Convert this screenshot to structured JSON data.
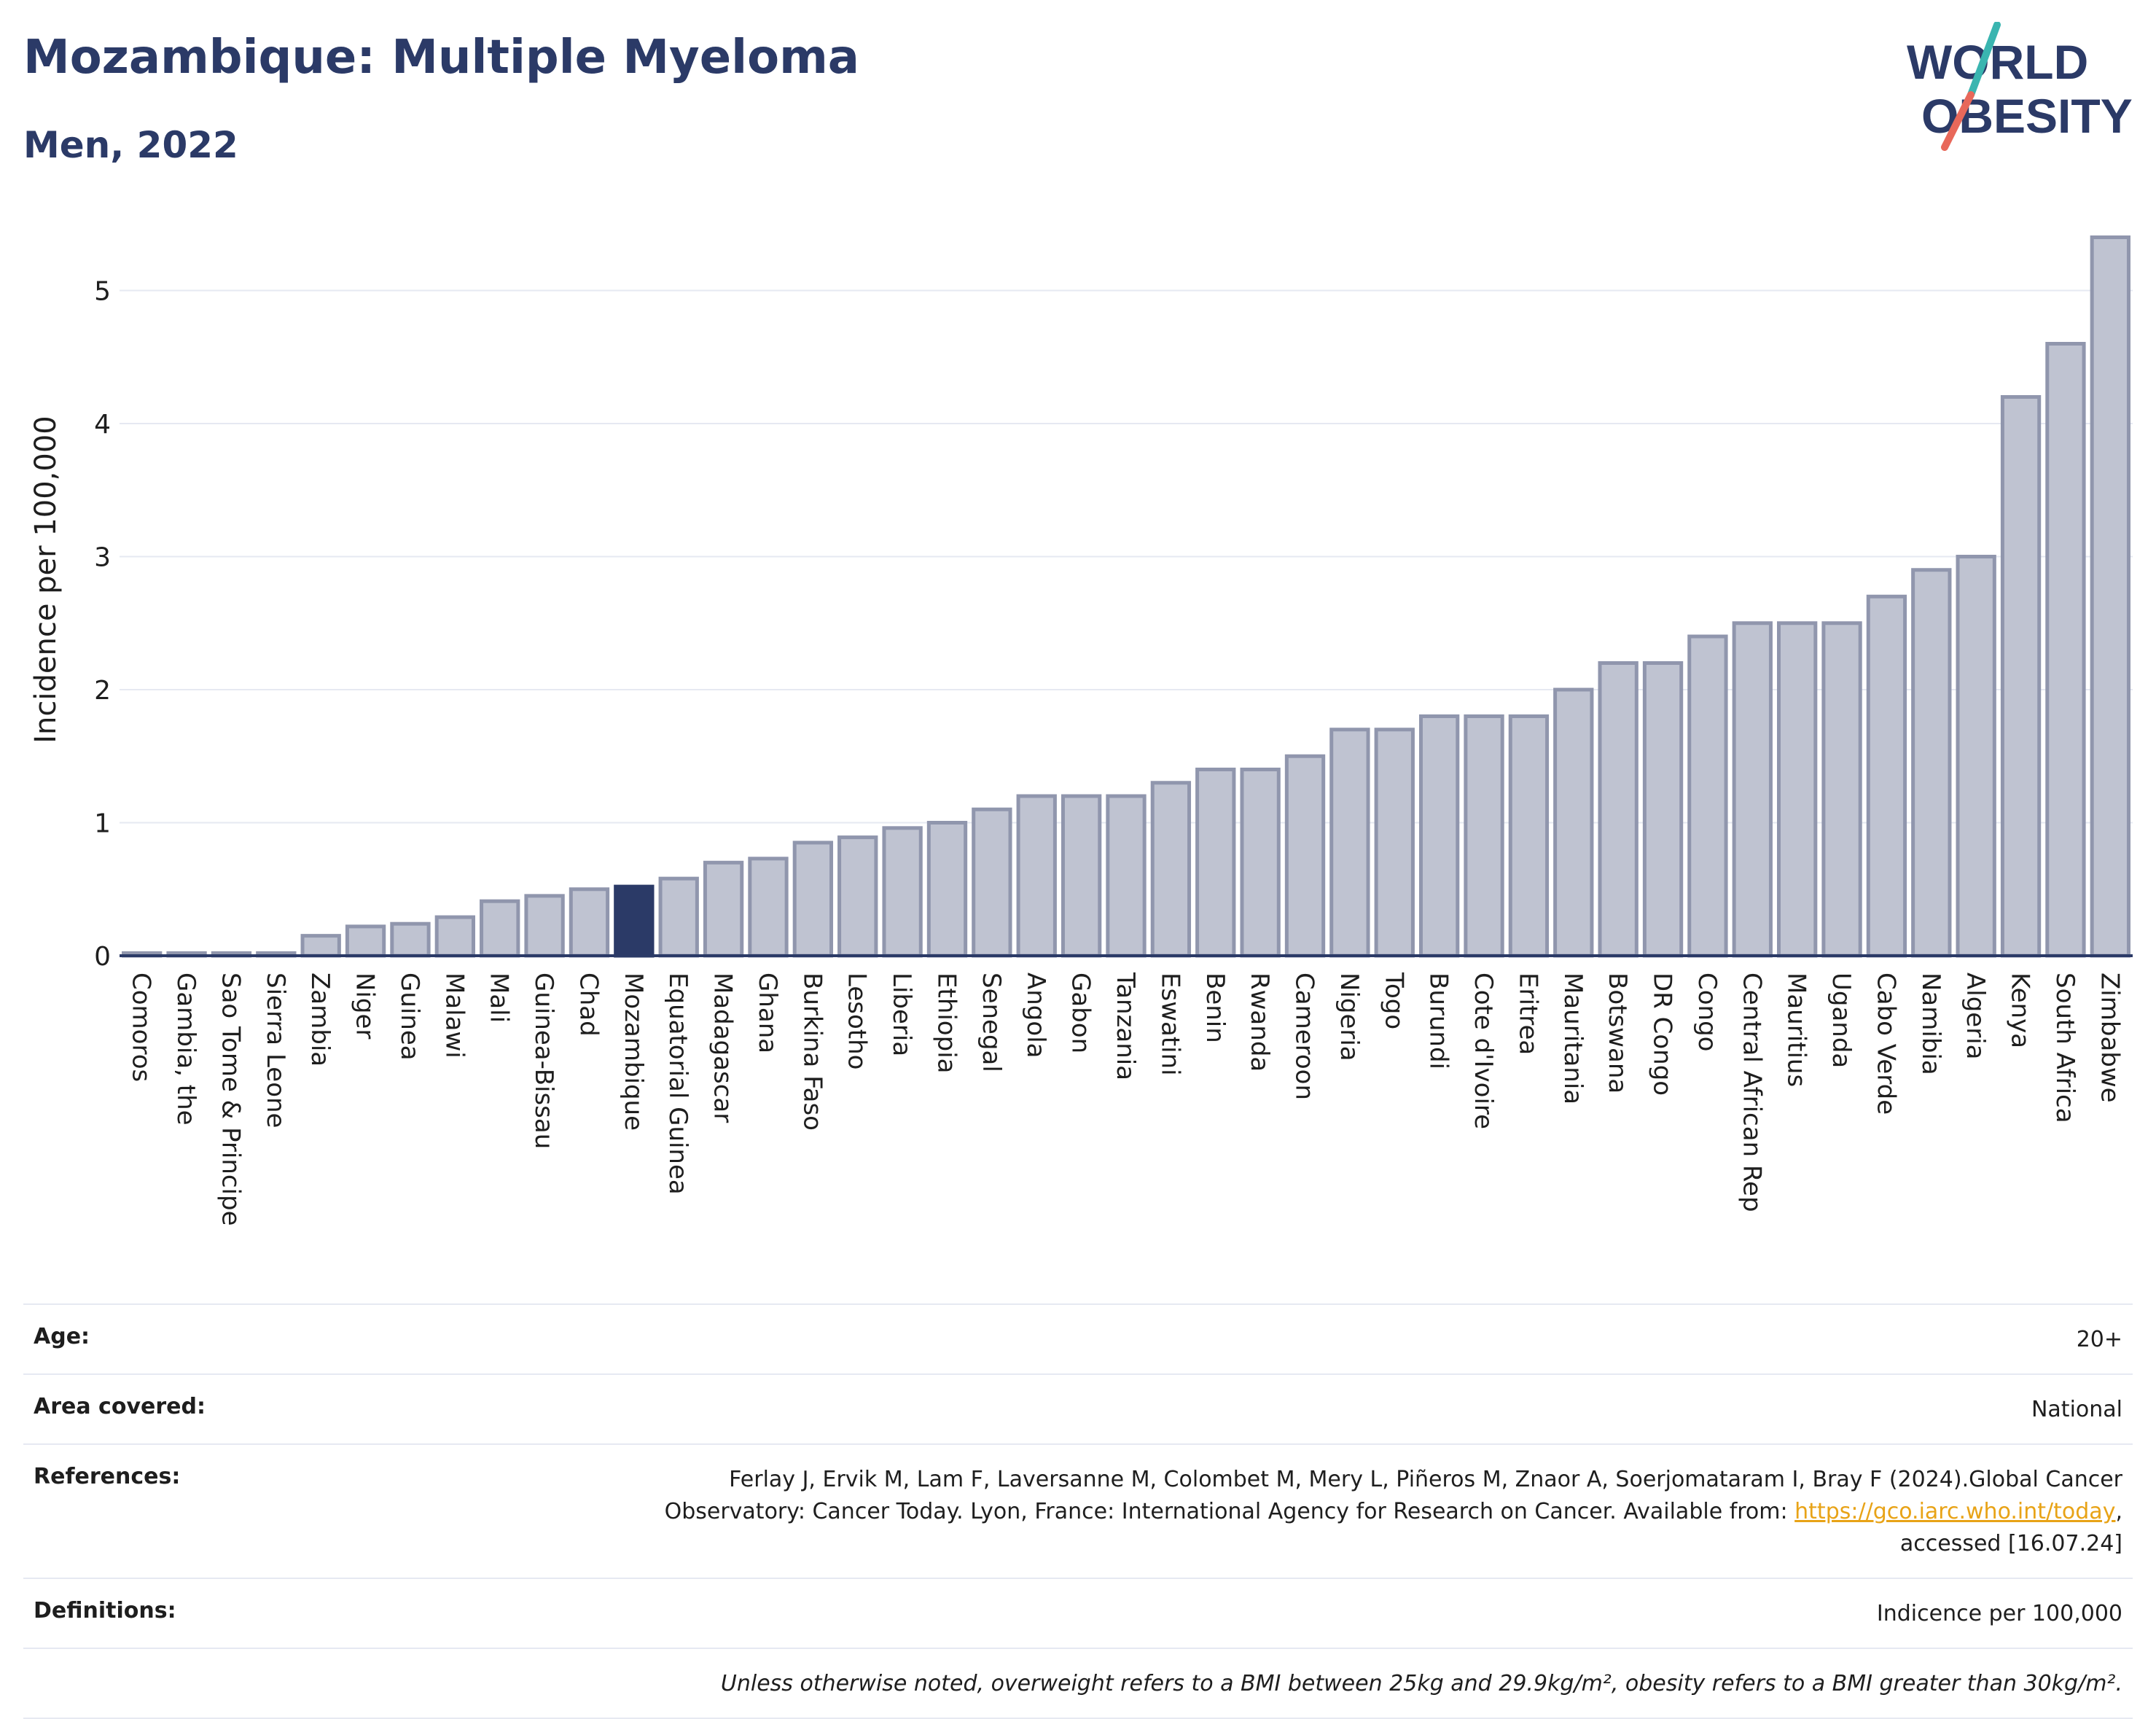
{
  "header": {
    "title": "Mozambique: Multiple Myeloma",
    "subtitle": "Men, 2022"
  },
  "logo": {
    "line1": "WORLD",
    "line2": "OBESITY",
    "text_color": "#2b3a67",
    "slash_colors": [
      "#3ab5b0",
      "#e8685a"
    ]
  },
  "chart_data": {
    "type": "bar",
    "ylabel": "Incidence per 100,000",
    "xlabel": "",
    "ylim": [
      0,
      5.5
    ],
    "yticks": [
      0,
      1,
      2,
      3,
      4,
      5
    ],
    "grid": true,
    "highlight": "Mozambique",
    "colors": {
      "bar": "#bfc3d1",
      "bar_edge": "#9096ad",
      "highlight": "#2b3a67",
      "grid": "#e6e9f2",
      "axis": "#2b3a67"
    },
    "categories": [
      "Comoros",
      "Gambia, the",
      "Sao Tome & Principe",
      "Sierra Leone",
      "Zambia",
      "Niger",
      "Guinea",
      "Malawi",
      "Mali",
      "Guinea-Bissau",
      "Chad",
      "Mozambique",
      "Equatorial Guinea",
      "Madagascar",
      "Ghana",
      "Burkina Faso",
      "Lesotho",
      "Liberia",
      "Ethiopia",
      "Senegal",
      "Angola",
      "Gabon",
      "Tanzania",
      "Eswatini",
      "Benin",
      "Rwanda",
      "Cameroon",
      "Nigeria",
      "Togo",
      "Burundi",
      "Cote d'Ivoire",
      "Eritrea",
      "Mauritania",
      "Botswana",
      "DR Congo",
      "Congo",
      "Central African Rep",
      "Mauritius",
      "Uganda",
      "Cabo Verde",
      "Namibia",
      "Algeria",
      "Kenya",
      "South Africa",
      "Zimbabwe"
    ],
    "values": [
      0.02,
      0.02,
      0.02,
      0.02,
      0.15,
      0.22,
      0.24,
      0.29,
      0.41,
      0.45,
      0.5,
      0.52,
      0.58,
      0.7,
      0.73,
      0.85,
      0.89,
      0.96,
      1.0,
      1.1,
      1.2,
      1.2,
      1.2,
      1.3,
      1.4,
      1.4,
      1.5,
      1.7,
      1.7,
      1.8,
      1.8,
      1.8,
      2.0,
      2.2,
      2.2,
      2.4,
      2.5,
      2.5,
      2.5,
      2.7,
      2.9,
      3.0,
      4.2,
      4.6,
      5.4
    ]
  },
  "info": {
    "age_label": "Age:",
    "age_value": "20+",
    "area_label": "Area covered:",
    "area_value": "National",
    "references_label": "References:",
    "references_line1": "Ferlay J, Ervik M, Lam F, Laversanne M, Colombet M, Mery L, Piñeros M, Znaor A, Soerjomataram I, Bray F (2024).Global Cancer",
    "references_line2": "Observatory: Cancer Today. Lyon, France: International Agency for Research on Cancer. Available from:",
    "references_link": "https://gco.iarc.who.int/today",
    "references_line3": "accessed [16.07.24]",
    "definitions_label": "Definitions:",
    "definitions_value": "Indicence per 100,000",
    "note": "Unless otherwise noted, overweight refers to a BMI between 25kg and 29.9kg/m², obesity refers to a BMI greater than 30kg/m²."
  }
}
